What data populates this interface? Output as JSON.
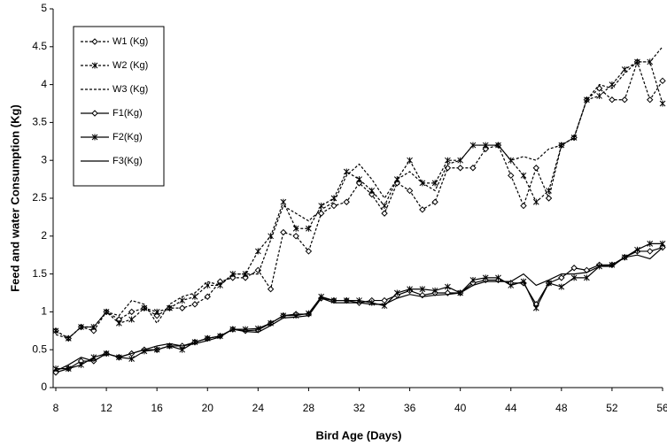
{
  "chart_data": {
    "type": "line",
    "xlabel": "Bird Age (Days)",
    "ylabel": "Feed and water Consumption (Kg)",
    "x": [
      8,
      9,
      10,
      11,
      12,
      13,
      14,
      15,
      16,
      17,
      18,
      19,
      20,
      21,
      22,
      23,
      24,
      25,
      26,
      27,
      28,
      29,
      30,
      31,
      32,
      33,
      34,
      35,
      36,
      37,
      38,
      39,
      40,
      41,
      42,
      43,
      44,
      45,
      46,
      47,
      48,
      49,
      50,
      51,
      52,
      53,
      54,
      55,
      56
    ],
    "xlim": [
      8,
      56
    ],
    "xticks": [
      8,
      12,
      16,
      20,
      24,
      28,
      32,
      36,
      40,
      44,
      48,
      52,
      56
    ],
    "ylim": [
      0,
      5
    ],
    "yticks": [
      0,
      0.5,
      1,
      1.5,
      2,
      2.5,
      3,
      3.5,
      4,
      4.5,
      5
    ],
    "grid": false,
    "legend": "upper left",
    "series": [
      {
        "name": "W1 (Kg)",
        "color": "#000000",
        "dash": "dotted",
        "marker": "diamond",
        "values": [
          0.75,
          0.65,
          0.8,
          0.75,
          1.0,
          0.9,
          1.0,
          1.05,
          0.95,
          1.05,
          1.05,
          1.1,
          1.2,
          1.4,
          1.45,
          1.45,
          1.55,
          1.3,
          2.05,
          2.0,
          1.8,
          2.3,
          2.4,
          2.45,
          2.7,
          2.55,
          2.3,
          2.7,
          2.6,
          2.35,
          2.45,
          2.9,
          2.9,
          2.9,
          3.15,
          3.2,
          2.8,
          2.4,
          2.9,
          2.5,
          3.2,
          3.3,
          3.8,
          3.95,
          3.8,
          3.8,
          4.3,
          3.8,
          4.05
        ]
      },
      {
        "name": "W2 (Kg)",
        "color": "#000000",
        "dash": "dotted",
        "marker": "star",
        "values": [
          0.75,
          0.65,
          0.8,
          0.8,
          1.0,
          0.85,
          0.9,
          1.05,
          1.0,
          1.05,
          1.15,
          1.2,
          1.35,
          1.35,
          1.5,
          1.5,
          1.8,
          2.0,
          2.45,
          2.1,
          2.1,
          2.4,
          2.5,
          2.85,
          2.75,
          2.6,
          2.4,
          2.75,
          3.0,
          2.7,
          2.7,
          3.0,
          3.0,
          3.2,
          3.2,
          3.2,
          3.0,
          2.8,
          2.45,
          2.6,
          3.2,
          3.3,
          3.8,
          3.85,
          4.0,
          4.2,
          4.3,
          4.3,
          3.75
        ]
      },
      {
        "name": "W3 (Kg)",
        "color": "#000000",
        "dash": "dotted",
        "marker": "none",
        "values": [
          0.7,
          0.65,
          0.8,
          0.8,
          1.0,
          0.95,
          1.15,
          1.1,
          0.85,
          1.1,
          1.2,
          1.25,
          1.4,
          1.35,
          1.5,
          1.5,
          1.5,
          1.95,
          2.4,
          2.3,
          2.2,
          2.35,
          2.45,
          2.8,
          2.95,
          2.75,
          2.5,
          2.75,
          2.85,
          2.7,
          2.6,
          2.95,
          3.0,
          3.2,
          3.2,
          3.2,
          3.0,
          3.05,
          3.0,
          3.15,
          3.2,
          3.3,
          3.8,
          4.0,
          3.95,
          4.15,
          4.3,
          4.3,
          4.5
        ]
      },
      {
        "name": "F1(Kg)",
        "color": "#000000",
        "dash": "solid",
        "marker": "diamond",
        "values": [
          0.2,
          0.25,
          0.35,
          0.35,
          0.45,
          0.4,
          0.45,
          0.5,
          0.5,
          0.55,
          0.55,
          0.6,
          0.65,
          0.68,
          0.77,
          0.75,
          0.76,
          0.85,
          0.95,
          0.97,
          0.97,
          1.18,
          1.15,
          1.15,
          1.12,
          1.15,
          1.15,
          1.22,
          1.28,
          1.22,
          1.25,
          1.25,
          1.25,
          1.38,
          1.42,
          1.42,
          1.38,
          1.38,
          1.1,
          1.38,
          1.45,
          1.58,
          1.55,
          1.62,
          1.62,
          1.72,
          1.8,
          1.8,
          1.85
        ]
      },
      {
        "name": "F2(Kg)",
        "color": "#000000",
        "dash": "solid",
        "marker": "star",
        "values": [
          0.25,
          0.25,
          0.3,
          0.4,
          0.45,
          0.4,
          0.38,
          0.48,
          0.5,
          0.55,
          0.5,
          0.6,
          0.65,
          0.68,
          0.77,
          0.77,
          0.78,
          0.85,
          0.95,
          0.95,
          0.98,
          1.2,
          1.15,
          1.15,
          1.15,
          1.12,
          1.08,
          1.25,
          1.3,
          1.3,
          1.28,
          1.33,
          1.25,
          1.42,
          1.45,
          1.45,
          1.35,
          1.4,
          1.05,
          1.38,
          1.33,
          1.45,
          1.45,
          1.6,
          1.62,
          1.72,
          1.82,
          1.9,
          1.9
        ]
      },
      {
        "name": "F3(Kg)",
        "color": "#000000",
        "dash": "solid",
        "marker": "none",
        "values": [
          0.22,
          0.3,
          0.4,
          0.35,
          0.45,
          0.4,
          0.45,
          0.5,
          0.55,
          0.58,
          0.55,
          0.58,
          0.62,
          0.67,
          0.77,
          0.74,
          0.73,
          0.82,
          0.92,
          0.93,
          0.95,
          1.18,
          1.12,
          1.12,
          1.12,
          1.1,
          1.1,
          1.18,
          1.23,
          1.2,
          1.22,
          1.23,
          1.25,
          1.35,
          1.4,
          1.4,
          1.4,
          1.5,
          1.35,
          1.42,
          1.5,
          1.5,
          1.52,
          1.6,
          1.6,
          1.72,
          1.75,
          1.7,
          1.85
        ]
      }
    ]
  }
}
